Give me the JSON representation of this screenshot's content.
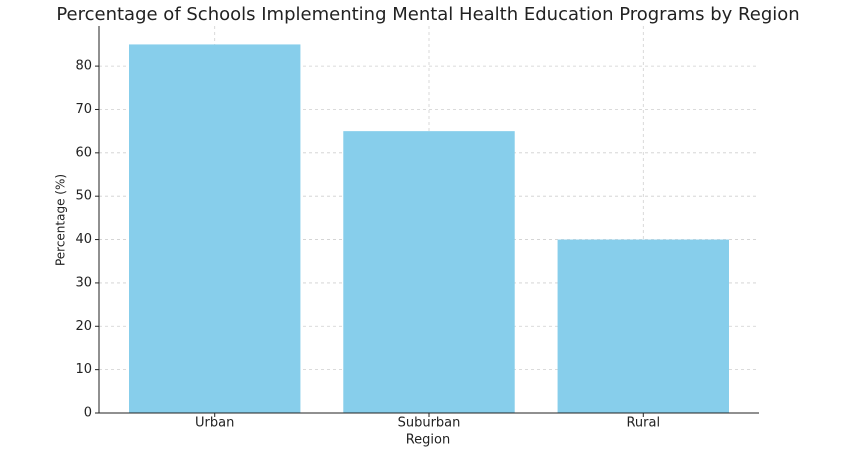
{
  "chart_data": {
    "type": "bar",
    "title": "Percentage of Schools Implementing Mental Health Education Programs by Region",
    "x_label": "Region",
    "y_label": "Percentage (%)",
    "categories": [
      "Urban",
      "Suburban",
      "Rural"
    ],
    "values": [
      85,
      65,
      40
    ],
    "color": "#87ceeb",
    "ylim": [
      0,
      89.25
    ],
    "yticks": [
      0,
      10,
      20,
      30,
      40,
      50,
      60,
      70,
      80
    ],
    "grid": true
  }
}
